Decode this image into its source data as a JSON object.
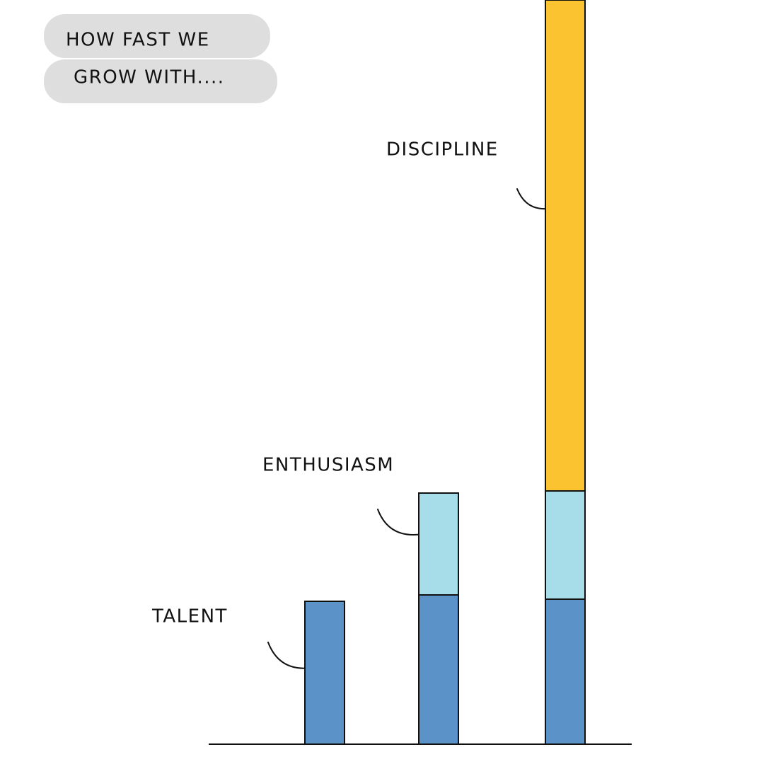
{
  "chart_data": {
    "type": "bar",
    "stacked": true,
    "title_lines": [
      "HOW FAST WE",
      "GROW WITH...."
    ],
    "categories": [
      null,
      null,
      null
    ],
    "series": [
      {
        "name": "TALENT",
        "color": "#5b93c9",
        "values": [
          202,
          211,
          205
        ]
      },
      {
        "name": "ENTHUSIASM",
        "color": "#a6dde8",
        "values": [
          null,
          144,
          153
        ]
      },
      {
        "name": "DISCIPLINE",
        "color": "#fbc330",
        "values": [
          null,
          null,
          694
        ]
      }
    ],
    "ylim": [
      0,
      1052
    ]
  }
}
